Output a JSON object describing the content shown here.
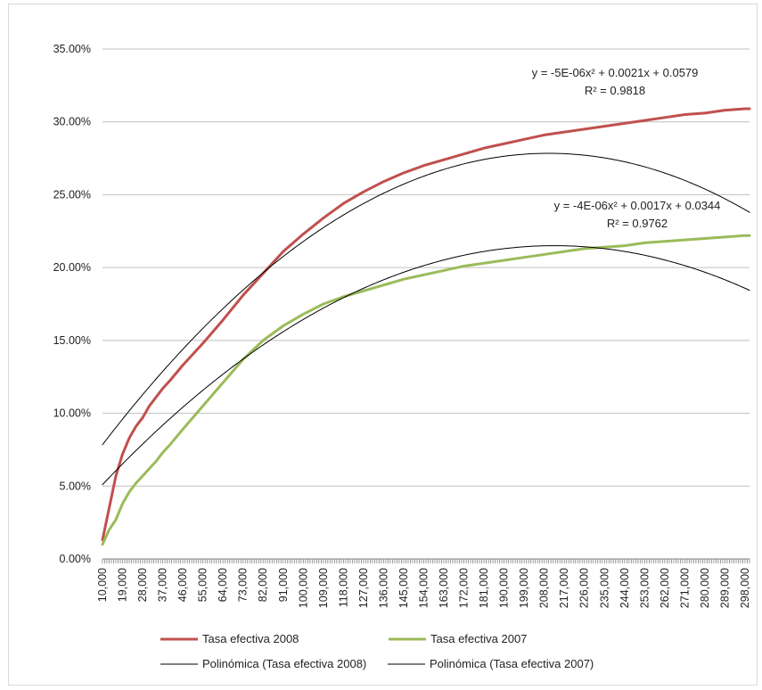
{
  "chart_data": {
    "type": "line",
    "title": "",
    "xlabel": "",
    "ylabel": "",
    "ylim": [
      0,
      0.35
    ],
    "xlim": [
      10000,
      300000
    ],
    "yticks": [
      "0.00%",
      "5.00%",
      "10.00%",
      "15.00%",
      "20.00%",
      "25.00%",
      "30.00%",
      "35.00%"
    ],
    "xticks": [
      "10,000",
      "19,000",
      "28,000",
      "37,000",
      "46,000",
      "55,000",
      "64,000",
      "73,000",
      "82,000",
      "91,000",
      "100,000",
      "109,000",
      "118,000",
      "127,000",
      "136,000",
      "145,000",
      "154,000",
      "163,000",
      "172,000",
      "181,000",
      "190,000",
      "199,000",
      "208,000",
      "217,000",
      "226,000",
      "235,000",
      "244,000",
      "253,000",
      "262,000",
      "271,000",
      "280,000",
      "289,000",
      "298,000"
    ],
    "grid": "horizontal",
    "legend_position": "bottom",
    "series": [
      {
        "name": "Tasa efectiva 2008",
        "color": "#c0504d",
        "x": [
          10000,
          13000,
          16000,
          19000,
          22000,
          25000,
          28000,
          31000,
          34000,
          37000,
          40000,
          46000,
          55000,
          64000,
          73000,
          82000,
          91000,
          100000,
          109000,
          118000,
          127000,
          136000,
          145000,
          154000,
          163000,
          172000,
          181000,
          190000,
          199000,
          208000,
          217000,
          226000,
          235000,
          244000,
          253000,
          262000,
          271000,
          280000,
          289000,
          298000,
          300000
        ],
        "y": [
          0.013,
          0.035,
          0.057,
          0.072,
          0.083,
          0.091,
          0.097,
          0.105,
          0.111,
          0.117,
          0.122,
          0.133,
          0.148,
          0.164,
          0.181,
          0.196,
          0.211,
          0.223,
          0.234,
          0.244,
          0.252,
          0.259,
          0.265,
          0.27,
          0.274,
          0.278,
          0.282,
          0.285,
          0.288,
          0.291,
          0.293,
          0.295,
          0.297,
          0.299,
          0.301,
          0.303,
          0.305,
          0.306,
          0.308,
          0.309,
          0.309
        ]
      },
      {
        "name": "Tasa efectiva 2007",
        "color": "#9bbb59",
        "x": [
          10000,
          13000,
          16000,
          19000,
          22000,
          25000,
          28000,
          31000,
          34000,
          37000,
          40000,
          46000,
          55000,
          64000,
          73000,
          82000,
          91000,
          100000,
          109000,
          118000,
          127000,
          136000,
          145000,
          154000,
          163000,
          172000,
          181000,
          190000,
          199000,
          208000,
          217000,
          226000,
          235000,
          244000,
          253000,
          262000,
          271000,
          280000,
          289000,
          298000,
          300000
        ],
        "y": [
          0.01,
          0.02,
          0.027,
          0.038,
          0.046,
          0.052,
          0.057,
          0.062,
          0.067,
          0.073,
          0.078,
          0.089,
          0.105,
          0.121,
          0.137,
          0.15,
          0.16,
          0.168,
          0.175,
          0.18,
          0.184,
          0.188,
          0.192,
          0.195,
          0.198,
          0.201,
          0.203,
          0.205,
          0.207,
          0.209,
          0.211,
          0.213,
          0.214,
          0.215,
          0.217,
          0.218,
          0.219,
          0.22,
          0.221,
          0.222,
          0.222
        ]
      },
      {
        "name": "Polinómica (Tasa efectiva 2008)",
        "color": "#000000",
        "trend": {
          "a": -5e-06,
          "b": 0.0021,
          "c": 0.0579,
          "x_scale": 1000
        }
      },
      {
        "name": "Polinómica (Tasa efectiva 2007)",
        "color": "#000000",
        "trend": {
          "a": -4e-06,
          "b": 0.0017,
          "c": 0.0344,
          "x_scale": 1000
        }
      }
    ],
    "annotations": {
      "eq2008": {
        "line1": "y = -5E-06x² + 0.0021x + 0.0579",
        "line2": "R² = 0.9818"
      },
      "eq2007": {
        "line1": "y = -4E-06x² + 0.0017x + 0.0344",
        "line2": "R² = 0.9762"
      }
    }
  }
}
